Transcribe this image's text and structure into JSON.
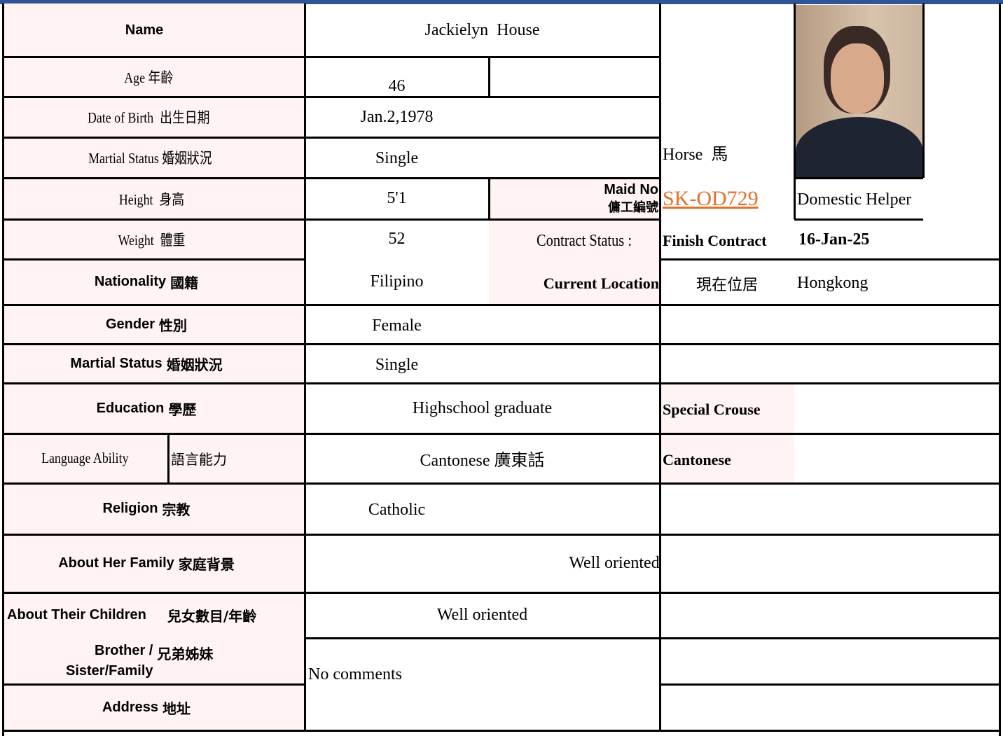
{
  "profile": {
    "name": {
      "label": "Name",
      "value": "Jackielyn  House"
    },
    "age": {
      "label": "Age 年齡",
      "value": "46"
    },
    "date_of_birth": {
      "label": "Date of Birth  出生日期",
      "value": "Jan.2,1978"
    },
    "marital_status": {
      "label": "Martial Status 婚姻狀況",
      "value": "Single"
    },
    "height": {
      "label": "Height  身高",
      "value": "5'1"
    },
    "weight": {
      "label": "Weight  體重",
      "value": "52"
    },
    "zodiac": "Horse  馬",
    "maid_no": {
      "label": "Maid No",
      "label_zh": "傭工編號",
      "value": "SK-OD729",
      "position": "Domestic Helper"
    },
    "contract": {
      "label": "Contract Status :",
      "status": "Finish Contract",
      "date": "16-Jan-25"
    },
    "nationality": {
      "label": "Nationality",
      "label_zh": "國籍",
      "value": "Filipino"
    },
    "current_location": {
      "label": "Current Location",
      "label_zh": "現在位居",
      "value": "Hongkong"
    },
    "gender": {
      "label": "Gender",
      "label_zh": "性別",
      "value": "Female"
    },
    "marital_status_2": {
      "label": "Martial Status",
      "label_zh": "婚姻狀況",
      "value": "Single"
    },
    "education": {
      "label": "Education",
      "label_zh": "學歷",
      "value": "Highschool graduate",
      "special_label": "Special Crouse"
    },
    "language": {
      "label": "Language Ability",
      "label_zh": "語言能力",
      "value": "Cantonese 廣東話",
      "special_value": "Cantonese"
    },
    "religion": {
      "label": "Religion",
      "label_zh": "宗教",
      "value": "Catholic"
    },
    "family": {
      "label": "About Her Family",
      "label_zh": "家庭背景",
      "value": "Well oriented"
    },
    "children": {
      "label": "About Their Children",
      "label_zh": "兒女數目/年齡",
      "value": "Well oriented"
    },
    "siblings": {
      "label": "Brother /",
      "label_2": "Sister/Family",
      "label_zh": "兄弟姊妹",
      "value": "No comments"
    },
    "address": {
      "label": "Address",
      "label_zh": "地址"
    }
  }
}
